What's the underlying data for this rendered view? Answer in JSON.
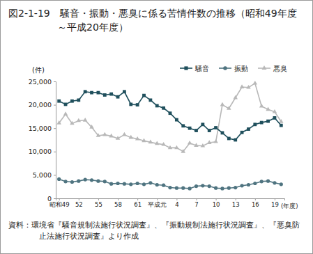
{
  "chart_data": {
    "type": "line",
    "title": "図2-1-19　騒音・振動・悪臭に係る苦情件数の推移（昭和49年度～平成20年度）",
    "x_label": "(年度)",
    "y_label": "(件)",
    "categories": [
      "昭和49",
      null,
      null,
      "52",
      null,
      null,
      "55",
      null,
      null,
      "58",
      null,
      null,
      "61",
      null,
      null,
      "平成元",
      null,
      null,
      "4",
      null,
      null,
      "7",
      null,
      null,
      "10",
      null,
      null,
      "13",
      null,
      null,
      "16",
      null,
      null,
      "19",
      null
    ],
    "series": [
      {
        "name": "騒音",
        "color": "#1f4f5c",
        "marker": "square",
        "values": [
          20800,
          20100,
          20800,
          21000,
          22800,
          22600,
          22600,
          22100,
          22300,
          21700,
          22800,
          20100,
          20000,
          22000,
          21000,
          19800,
          19300,
          18200,
          16800,
          15500,
          15000,
          14500,
          15800,
          14500,
          15100,
          14000,
          12800,
          12500,
          14100,
          14800,
          15800,
          16200,
          16500,
          17200,
          15600
        ]
      },
      {
        "name": "振動",
        "color": "#4f7480",
        "marker": "circle",
        "values": [
          4100,
          3600,
          3500,
          3700,
          4000,
          3900,
          3700,
          3600,
          3100,
          3200,
          3100,
          3000,
          3200,
          3000,
          3300,
          2900,
          2800,
          2300,
          2200,
          2200,
          2100,
          2600,
          2700,
          2600,
          2200,
          2100,
          2200,
          2300,
          2700,
          2900,
          3200,
          3600,
          3700,
          3300,
          3000
        ]
      },
      {
        "name": "悪臭",
        "color": "#b8b8b8",
        "marker": "triangle",
        "values": [
          16100,
          18000,
          16000,
          16600,
          16700,
          15200,
          13400,
          13600,
          13300,
          12800,
          13600,
          13000,
          12700,
          12300,
          12000,
          11700,
          11500,
          10800,
          10800,
          10000,
          11800,
          11300,
          11200,
          11900,
          12100,
          20000,
          19200,
          21500,
          23800,
          23700,
          24600,
          19700,
          19000,
          18500,
          16400
        ]
      }
    ],
    "ylim": [
      0,
      25000
    ],
    "yticks": [
      0,
      {
        "value": 5000,
        "label": "5,000"
      },
      {
        "value": 10000,
        "label": "10,000"
      },
      {
        "value": 15000,
        "label": "15,000"
      },
      {
        "value": 20000,
        "label": "20,000"
      },
      {
        "value": 25000,
        "label": "25,000"
      }
    ],
    "grid": false,
    "legend": "top right",
    "annotations": [
      "資料：環境省『騒音規制法施行状況調査』、『振動規制法施行状況調査』、『悪臭防止法施行状況調査』より作成"
    ]
  }
}
